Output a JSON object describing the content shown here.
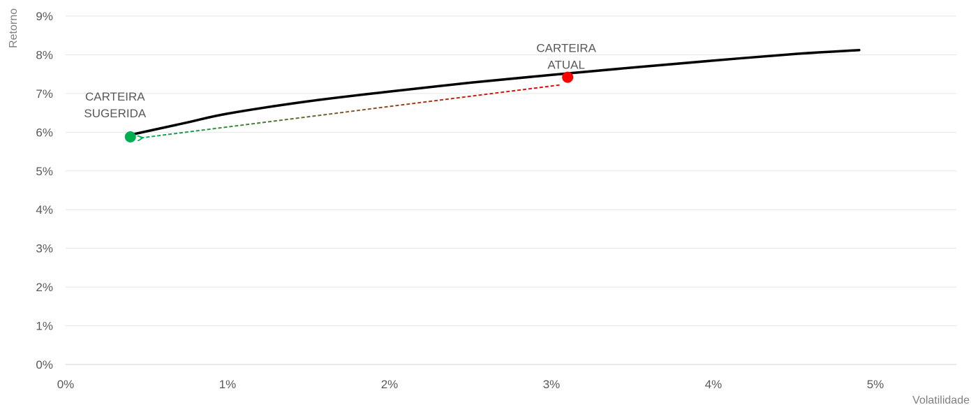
{
  "chart_data": {
    "type": "line",
    "xlabel": "Volatilidade",
    "ylabel": "Retorno",
    "xlim": [
      0,
      5.5
    ],
    "ylim": [
      0,
      9
    ],
    "grid": true,
    "legend": "none",
    "x_tick_values": [
      0,
      1,
      2,
      3,
      4,
      5
    ],
    "x_tick_labels": [
      "0%",
      "1%",
      "2%",
      "3%",
      "4%",
      "5%"
    ],
    "y_tick_values": [
      0,
      1,
      2,
      3,
      4,
      5,
      6,
      7,
      8,
      9
    ],
    "y_tick_labels": [
      "0%",
      "1%",
      "2%",
      "3%",
      "4%",
      "5%",
      "6%",
      "7%",
      "8%",
      "9%"
    ],
    "series": [
      {
        "color": "#000000",
        "points": [
          {
            "x": 0.42,
            "y": 5.95
          },
          {
            "x": 0.75,
            "y": 6.25
          },
          {
            "x": 1.0,
            "y": 6.48
          },
          {
            "x": 1.5,
            "y": 6.8
          },
          {
            "x": 2.0,
            "y": 7.05
          },
          {
            "x": 2.5,
            "y": 7.28
          },
          {
            "x": 3.0,
            "y": 7.48
          },
          {
            "x": 3.5,
            "y": 7.67
          },
          {
            "x": 4.0,
            "y": 7.85
          },
          {
            "x": 4.5,
            "y": 8.02
          },
          {
            "x": 4.9,
            "y": 8.12
          }
        ]
      }
    ],
    "highlights": [
      {
        "label_lines": [
          "CARTEIRA",
          "SUGERIDA"
        ],
        "x": 0.4,
        "y": 5.88,
        "color": "#00b050"
      },
      {
        "label_lines": [
          "CARTEIRA",
          "ATUAL"
        ],
        "x": 3.1,
        "y": 7.42,
        "color": "#ff0000"
      }
    ],
    "arrow": {
      "from_x": 3.05,
      "from_y": 7.22,
      "to_x": 0.46,
      "to_y": 5.85,
      "color_start": "#ff0000",
      "color_end": "#00b050",
      "style": "dashed"
    }
  }
}
